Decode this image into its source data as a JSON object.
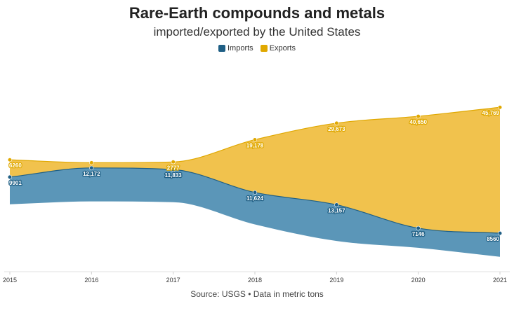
{
  "header": {
    "title": "Rare-Earth compounds and metals",
    "subtitle": "imported/exported by the United States"
  },
  "legend": {
    "imports_label": "Imports",
    "exports_label": "Exports"
  },
  "footer": {
    "source": "Source: USGS • Data in metric tons"
  },
  "colors": {
    "imports": "#5b96b8",
    "imports_dark": "#1f5f85",
    "exports": "#f1c24d",
    "exports_dark": "#e0a800"
  },
  "chart_data": {
    "type": "area",
    "stacked": "streamgraph",
    "title": "Rare-Earth compounds and metals",
    "subtitle": "imported/exported by the United States",
    "x": [
      "2015",
      "2016",
      "2017",
      "2018",
      "2019",
      "2020",
      "2021"
    ],
    "series": [
      {
        "name": "Imports",
        "values": [
          9901,
          12172,
          11833,
          11624,
          13157,
          7146,
          8560
        ],
        "labels": [
          "9901",
          "12,172",
          "11,833",
          "11,624",
          "13,157",
          "7146",
          "8560"
        ]
      },
      {
        "name": "Exports",
        "values": [
          6260,
          1900,
          2777,
          19178,
          29673,
          40650,
          45769
        ],
        "labels": [
          "6260",
          "",
          "2777",
          "19,178",
          "29,673",
          "40,650",
          "45,769"
        ]
      }
    ],
    "legend_position": "top-center",
    "grid": false,
    "units": "metric tons"
  }
}
